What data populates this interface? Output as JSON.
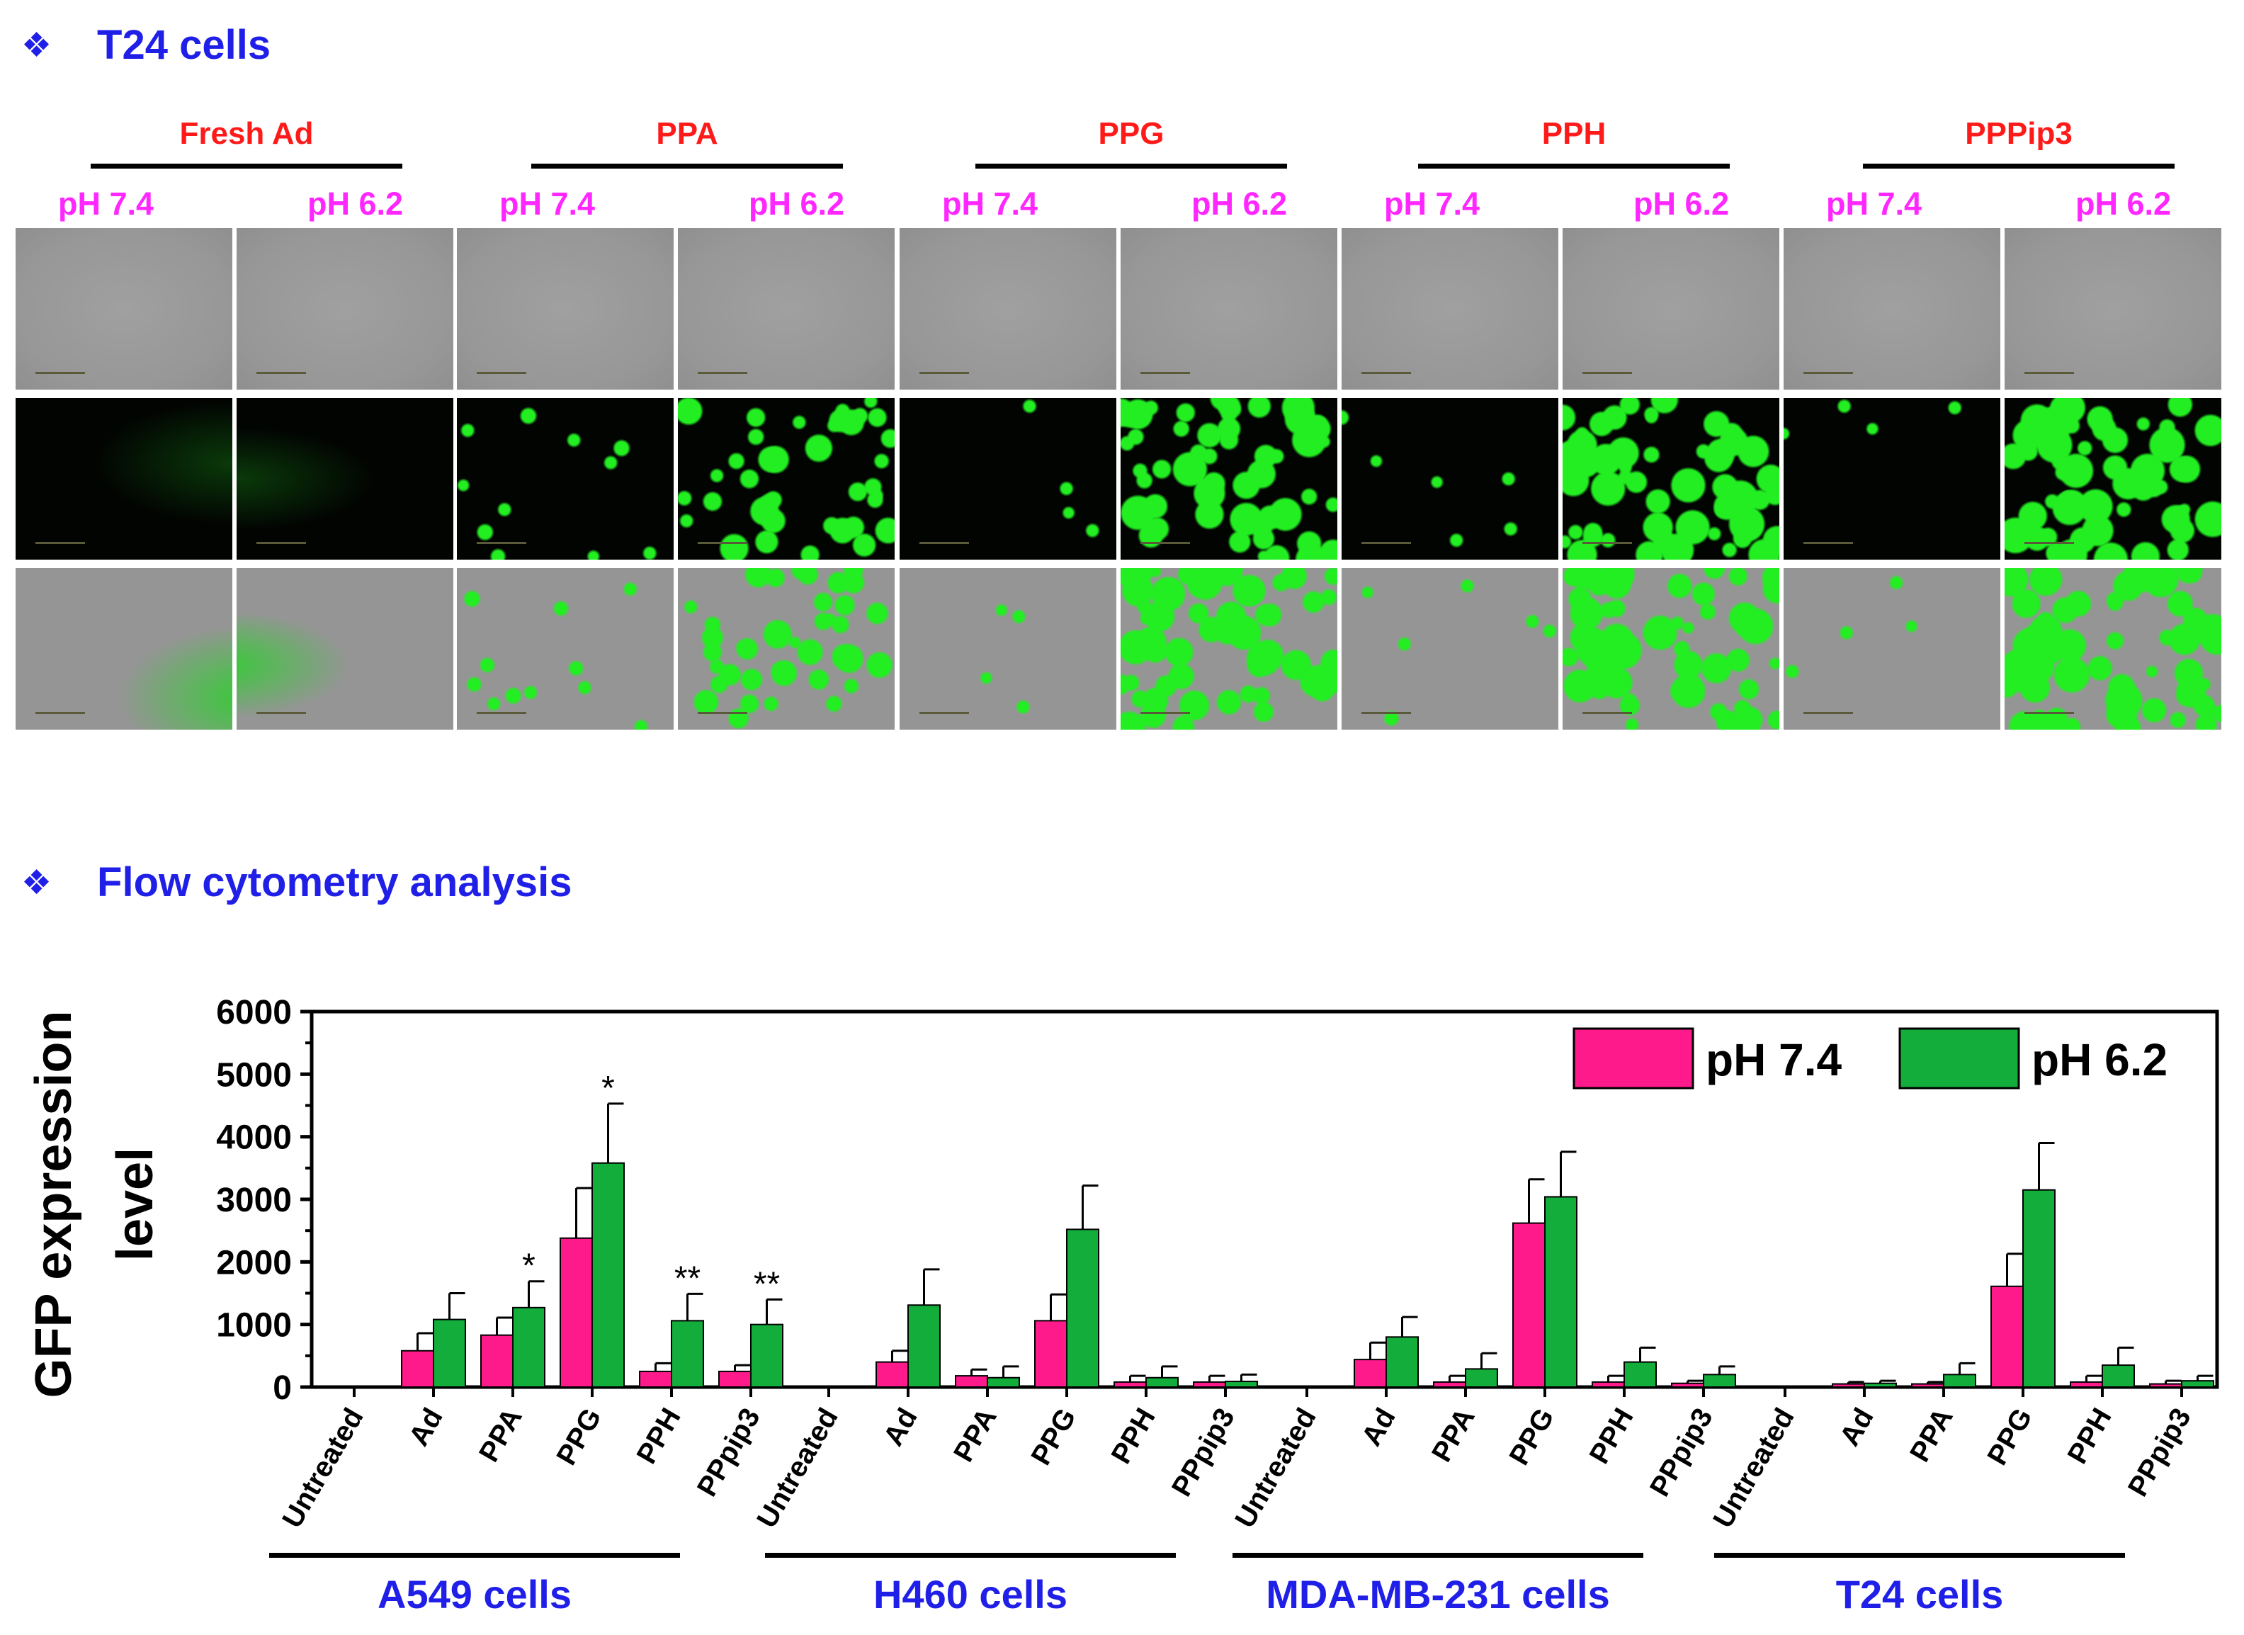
{
  "section_title_top": "T24 cells",
  "section_title_bottom": "Flow cytometry analysis",
  "bullet_glyph": "❖",
  "micro_groups": [
    {
      "label": "Fresh Ad",
      "ph": [
        "pH 7.4",
        "pH 6.2"
      ]
    },
    {
      "label": "PPA",
      "ph": [
        "pH 7.4",
        "pH 6.2"
      ]
    },
    {
      "label": "PPG",
      "ph": [
        "pH 7.4",
        "pH 6.2"
      ]
    },
    {
      "label": "PPH",
      "ph": [
        "pH 7.4",
        "pH 6.2"
      ]
    },
    {
      "label": "PPPip3",
      "ph": [
        "pH 7.4",
        "pH 6.2"
      ]
    }
  ],
  "micro_gfp_intensity": [
    0.0,
    0.0,
    0.15,
    0.55,
    0.05,
    0.75,
    0.08,
    0.8,
    0.05,
    0.8
  ],
  "colors": {
    "title_blue": "#1f1fe8",
    "group_red": "#ff1a1a",
    "ph_magenta": "#ff26ff",
    "bar_ph74": "#ff1a8c",
    "bar_ph62": "#13ad3c",
    "gfp_green": "#22ee22"
  },
  "chart_data": {
    "type": "bar",
    "ylabel": "GFP expression level",
    "ylim": [
      0,
      6000
    ],
    "yticks": [
      0,
      1000,
      2000,
      3000,
      4000,
      5000,
      6000
    ],
    "ytick_labels": [
      "0",
      "1000",
      "2000",
      "3000",
      "4000",
      "5000",
      "6000"
    ],
    "legend_position": "top-right",
    "groups": [
      {
        "name": "A549 cells",
        "categories": [
          "Untreated",
          "Ad",
          "PPA",
          "PPG",
          "PPH",
          "PPpip3"
        ],
        "ph74": [
          0,
          580,
          830,
          2380,
          250,
          250
        ],
        "ph74_err": [
          0,
          280,
          280,
          800,
          130,
          100
        ],
        "ph62": [
          0,
          1080,
          1270,
          3580,
          1060,
          1000
        ],
        "ph62_err": [
          0,
          420,
          420,
          950,
          430,
          400
        ],
        "annotations": [
          "",
          "",
          "*",
          "*",
          "**",
          "**"
        ]
      },
      {
        "name": "H460 cells",
        "categories": [
          "Untreated",
          "Ad",
          "PPA",
          "PPG",
          "PPH",
          "PPpip3"
        ],
        "ph74": [
          0,
          400,
          180,
          1060,
          80,
          80
        ],
        "ph74_err": [
          0,
          180,
          100,
          420,
          100,
          100
        ],
        "ph62": [
          0,
          1310,
          150,
          2520,
          150,
          90
        ],
        "ph62_err": [
          0,
          570,
          180,
          700,
          180,
          110
        ],
        "annotations": [
          "",
          "",
          "",
          "",
          "",
          ""
        ]
      },
      {
        "name": "MDA-MB-231 cells",
        "categories": [
          "Untreated",
          "Ad",
          "PPA",
          "PPG",
          "PPH",
          "PPpip3"
        ],
        "ph74": [
          0,
          440,
          80,
          2620,
          80,
          60
        ],
        "ph74_err": [
          0,
          270,
          100,
          700,
          100,
          40
        ],
        "ph62": [
          0,
          800,
          290,
          3040,
          400,
          200
        ],
        "ph62_err": [
          0,
          320,
          250,
          720,
          230,
          130
        ],
        "annotations": [
          "",
          "",
          "",
          "",
          "",
          ""
        ]
      },
      {
        "name": "T24 cells",
        "categories": [
          "Untreated",
          "Ad",
          "PPA",
          "PPG",
          "PPH",
          "PPpip3"
        ],
        "ph74": [
          0,
          50,
          50,
          1610,
          80,
          50
        ],
        "ph74_err": [
          0,
          30,
          30,
          520,
          100,
          50
        ],
        "ph62": [
          0,
          60,
          200,
          3150,
          350,
          100
        ],
        "ph62_err": [
          0,
          40,
          180,
          750,
          280,
          80
        ],
        "annotations": [
          "",
          "",
          "",
          "",
          "",
          ""
        ]
      }
    ],
    "series": [
      {
        "name": "pH 7.4",
        "color_key": "bar_ph74"
      },
      {
        "name": "pH 6.2",
        "color_key": "bar_ph62"
      }
    ]
  }
}
